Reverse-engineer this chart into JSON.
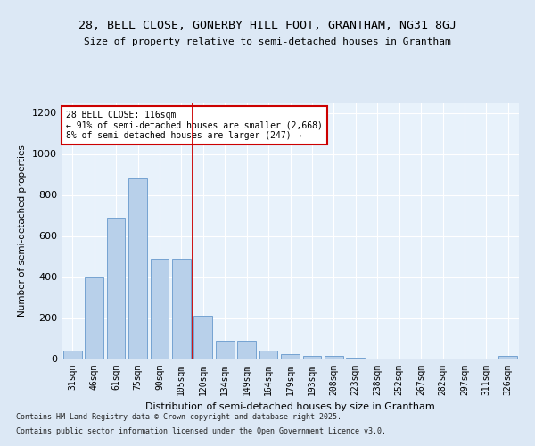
{
  "title1": "28, BELL CLOSE, GONERBY HILL FOOT, GRANTHAM, NG31 8GJ",
  "title2": "Size of property relative to semi-detached houses in Grantham",
  "xlabel": "Distribution of semi-detached houses by size in Grantham",
  "ylabel": "Number of semi-detached properties",
  "categories": [
    "31sqm",
    "46sqm",
    "61sqm",
    "75sqm",
    "90sqm",
    "105sqm",
    "120sqm",
    "134sqm",
    "149sqm",
    "164sqm",
    "179sqm",
    "193sqm",
    "208sqm",
    "223sqm",
    "238sqm",
    "252sqm",
    "267sqm",
    "282sqm",
    "297sqm",
    "311sqm",
    "326sqm"
  ],
  "values": [
    40,
    400,
    690,
    880,
    490,
    490,
    210,
    90,
    90,
    40,
    25,
    15,
    15,
    5,
    3,
    3,
    3,
    3,
    3,
    3,
    15
  ],
  "bar_color": "#b8d0ea",
  "bar_edge_color": "#6699cc",
  "annotation_text": "28 BELL CLOSE: 116sqm\n← 91% of semi-detached houses are smaller (2,668)\n8% of semi-detached houses are larger (247) →",
  "annotation_box_color": "#cc0000",
  "ylim": [
    0,
    1250
  ],
  "yticks": [
    0,
    200,
    400,
    600,
    800,
    1000,
    1200
  ],
  "footer1": "Contains HM Land Registry data © Crown copyright and database right 2025.",
  "footer2": "Contains public sector information licensed under the Open Government Licence v3.0.",
  "bg_color": "#dce8f5",
  "plot_bg_color": "#e8f2fb"
}
